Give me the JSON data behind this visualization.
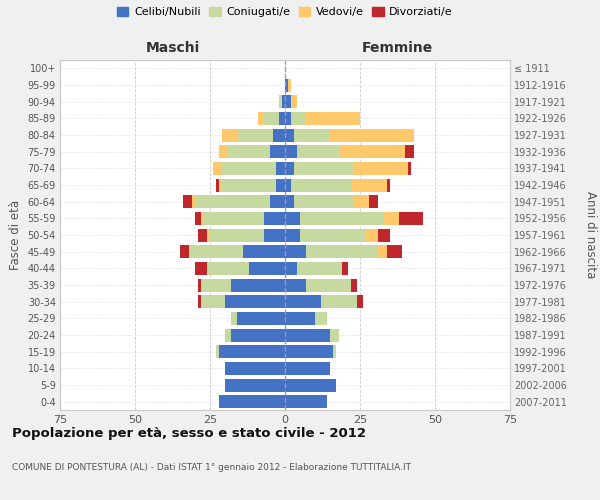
{
  "age_groups": [
    "0-4",
    "5-9",
    "10-14",
    "15-19",
    "20-24",
    "25-29",
    "30-34",
    "35-39",
    "40-44",
    "45-49",
    "50-54",
    "55-59",
    "60-64",
    "65-69",
    "70-74",
    "75-79",
    "80-84",
    "85-89",
    "90-94",
    "95-99",
    "100+"
  ],
  "birth_years": [
    "2007-2011",
    "2002-2006",
    "1997-2001",
    "1992-1996",
    "1987-1991",
    "1982-1986",
    "1977-1981",
    "1972-1976",
    "1967-1971",
    "1962-1966",
    "1957-1961",
    "1952-1956",
    "1947-1951",
    "1942-1946",
    "1937-1941",
    "1932-1936",
    "1927-1931",
    "1922-1926",
    "1917-1921",
    "1912-1916",
    "≤ 1911"
  ],
  "maschi": {
    "celibi": [
      22,
      20,
      20,
      22,
      18,
      16,
      20,
      18,
      12,
      14,
      7,
      7,
      5,
      3,
      3,
      5,
      4,
      2,
      1,
      0,
      0
    ],
    "coniugati": [
      0,
      0,
      0,
      1,
      2,
      2,
      8,
      10,
      14,
      18,
      18,
      20,
      25,
      18,
      18,
      14,
      12,
      5,
      1,
      0,
      0
    ],
    "vedovi": [
      0,
      0,
      0,
      0,
      0,
      0,
      0,
      0,
      0,
      0,
      1,
      1,
      1,
      1,
      3,
      3,
      5,
      2,
      0,
      0,
      0
    ],
    "divorziati": [
      0,
      0,
      0,
      0,
      0,
      0,
      1,
      1,
      4,
      3,
      3,
      2,
      3,
      1,
      0,
      0,
      0,
      0,
      0,
      0,
      0
    ]
  },
  "femmine": {
    "nubili": [
      14,
      17,
      15,
      16,
      15,
      10,
      12,
      7,
      4,
      7,
      5,
      5,
      3,
      2,
      3,
      4,
      3,
      2,
      2,
      1,
      0
    ],
    "coniugate": [
      0,
      0,
      0,
      1,
      3,
      4,
      12,
      15,
      15,
      24,
      22,
      28,
      20,
      20,
      20,
      14,
      12,
      5,
      0,
      0,
      0
    ],
    "vedove": [
      0,
      0,
      0,
      0,
      0,
      0,
      0,
      0,
      0,
      3,
      4,
      5,
      5,
      12,
      18,
      22,
      28,
      18,
      2,
      1,
      0
    ],
    "divorziate": [
      0,
      0,
      0,
      0,
      0,
      0,
      2,
      2,
      2,
      5,
      4,
      8,
      3,
      1,
      1,
      3,
      0,
      0,
      0,
      0,
      0
    ]
  },
  "colors": {
    "celibi": "#4472c4",
    "coniugati": "#c5d9a0",
    "vedovi": "#ffc96b",
    "divorziati": "#c0272d"
  },
  "xlim": 75,
  "title": "Popolazione per età, sesso e stato civile - 2012",
  "subtitle": "COMUNE DI PONTESTURA (AL) - Dati ISTAT 1° gennaio 2012 - Elaborazione TUTTITALIA.IT",
  "ylabel_left": "Fasce di età",
  "ylabel_right": "Anni di nascita",
  "xlabel_left": "Maschi",
  "xlabel_right": "Femmine",
  "legend_labels": [
    "Celibi/Nubili",
    "Coniugati/e",
    "Vedovi/e",
    "Divorziati/e"
  ],
  "bg_color": "#f0f0f0",
  "plot_bg": "#ffffff"
}
